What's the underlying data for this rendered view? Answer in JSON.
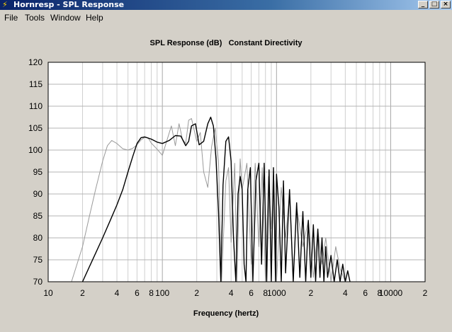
{
  "window": {
    "title": "Hornresp - SPL Response",
    "buttons": {
      "minimize": "_",
      "maximize": "□",
      "close": "×"
    }
  },
  "menu": [
    "File",
    "Tools",
    "Window",
    "Help"
  ],
  "plot": {
    "title": "SPL Response (dB)",
    "subtitle": "Constant Directivity",
    "xlabel": "Frequency (hertz)"
  },
  "chart_data": {
    "type": "line",
    "x_scale": "log",
    "xlim": [
      10,
      20000
    ],
    "ylim": [
      70,
      120
    ],
    "yticks": [
      70,
      75,
      80,
      85,
      90,
      95,
      100,
      105,
      110,
      115,
      120
    ],
    "xtick_labels": [
      {
        "x": 10,
        "label": "10"
      },
      {
        "x": 20,
        "label": "2"
      },
      {
        "x": 40,
        "label": "4"
      },
      {
        "x": 60,
        "label": "6"
      },
      {
        "x": 80,
        "label": "8"
      },
      {
        "x": 100,
        "label": "100"
      },
      {
        "x": 200,
        "label": "2"
      },
      {
        "x": 400,
        "label": "4"
      },
      {
        "x": 600,
        "label": "6"
      },
      {
        "x": 800,
        "label": "8"
      },
      {
        "x": 1000,
        "label": "1000"
      },
      {
        "x": 2000,
        "label": "2"
      },
      {
        "x": 4000,
        "label": "4"
      },
      {
        "x": 6000,
        "label": "6"
      },
      {
        "x": 8000,
        "label": "8"
      },
      {
        "x": 10000,
        "label": "10000"
      },
      {
        "x": 20000,
        "label": "2"
      }
    ],
    "grid": true,
    "series": [
      {
        "color": "#000000",
        "x": [
          20,
          25,
          30,
          35,
          40,
          45,
          50,
          55,
          60,
          65,
          70,
          80,
          90,
          100,
          115,
          130,
          145,
          160,
          170,
          180,
          195,
          210,
          230,
          250,
          265,
          280,
          295,
          310,
          325,
          340,
          360,
          380,
          400,
          420,
          440,
          460,
          480,
          500,
          520,
          540,
          560,
          590,
          620,
          660,
          700,
          740,
          780,
          820,
          860,
          900,
          940,
          980,
          1000,
          1050,
          1100,
          1150,
          1200,
          1300,
          1400,
          1500,
          1600,
          1700,
          1800,
          1900,
          2000,
          2100,
          2200,
          2300,
          2400,
          2500,
          2600,
          2700,
          2800,
          3000,
          3200,
          3400,
          3600,
          3800,
          4000,
          4200,
          4400
        ],
        "y": [
          70,
          75.5,
          80,
          84,
          87.5,
          91,
          95,
          98.5,
          101.5,
          102.8,
          103,
          102.5,
          101.8,
          101.5,
          102.2,
          103.3,
          103.2,
          101,
          102,
          105.5,
          106,
          101.2,
          102,
          106,
          107.5,
          105.5,
          98,
          86,
          70,
          92,
          102,
          103,
          97.5,
          80,
          70,
          90,
          94,
          91,
          74,
          70,
          91,
          96,
          70,
          93,
          97,
          74,
          97,
          70,
          95.5,
          70,
          96,
          70,
          94.5,
          87,
          70,
          93,
          72,
          91,
          70,
          88,
          71,
          86,
          70,
          84,
          71,
          83,
          70,
          82,
          71,
          80,
          70,
          78,
          71,
          76,
          70,
          75,
          70,
          74,
          70,
          72.5,
          70
        ]
      },
      {
        "color": "#9a9a9a",
        "x": [
          16,
          20,
          23,
          26,
          30,
          33,
          36,
          40,
          45,
          50,
          55,
          60,
          65,
          70,
          75,
          80,
          90,
          100,
          110,
          120,
          130,
          140,
          150,
          160,
          170,
          180,
          200,
          215,
          230,
          250,
          270,
          290,
          310,
          330,
          360,
          380,
          400,
          430,
          450,
          480,
          500,
          550,
          600,
          650,
          700,
          750,
          800,
          850,
          900,
          950,
          1000,
          1100,
          1200,
          1300,
          1400,
          1500,
          1700,
          1900,
          2100,
          2300,
          2500,
          2700,
          3000,
          3300,
          3600,
          4000
        ],
        "y": [
          70,
          78,
          85,
          91,
          97.5,
          101,
          102.2,
          101.5,
          100.3,
          100,
          100.4,
          101.2,
          102.3,
          102.9,
          102.8,
          101.6,
          100.2,
          98.8,
          102.3,
          105.5,
          101,
          106,
          102.5,
          101.5,
          106.8,
          107.2,
          102,
          104,
          95,
          91.5,
          100.8,
          105,
          97.5,
          70,
          93,
          96,
          79,
          97,
          70,
          98,
          91,
          97,
          74,
          97,
          78,
          96,
          70,
          94,
          82,
          93,
          70,
          91.5,
          80,
          90,
          70,
          87,
          78,
          84,
          71,
          82,
          74,
          80,
          70,
          78,
          73,
          70
        ]
      }
    ]
  }
}
